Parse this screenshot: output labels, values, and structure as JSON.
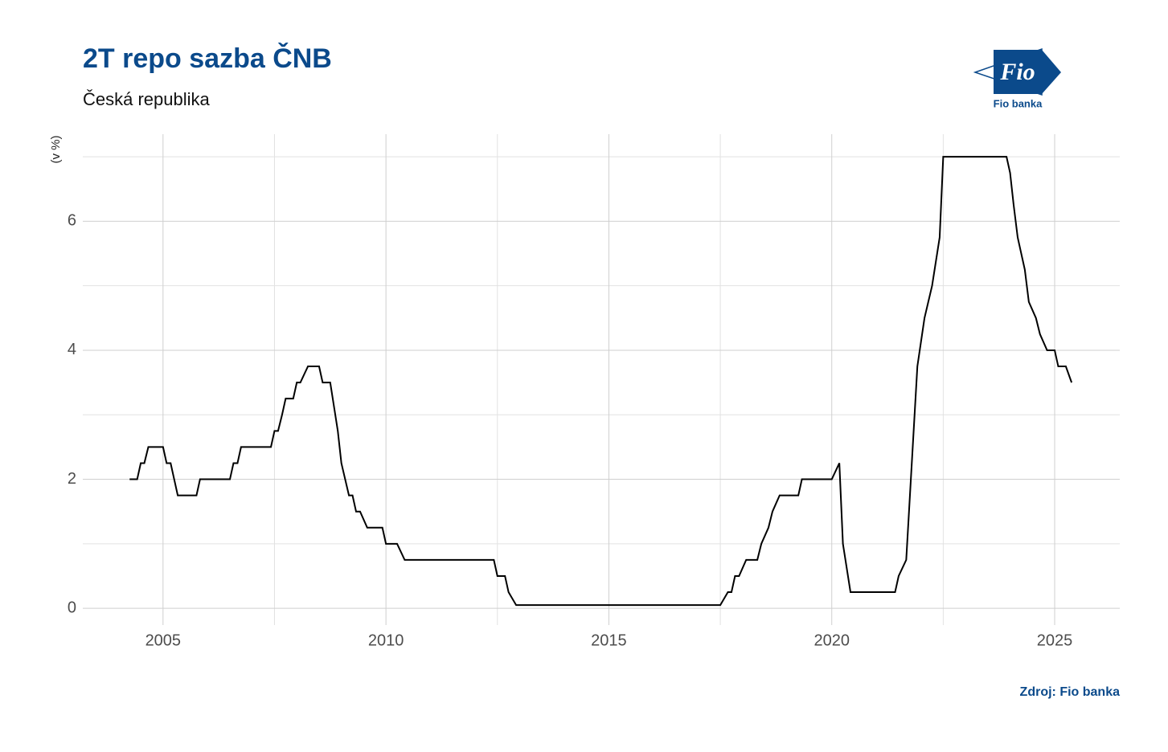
{
  "chart_data": {
    "type": "line",
    "title": "2T repo sazba ČNB",
    "subtitle": "Česká republika",
    "y_label": "(v %)",
    "caption": "Zdroj: Fio banka",
    "logo": {
      "mark": "Fio",
      "name": "Fio banka"
    },
    "xlim": [
      2003.2,
      2026.46
    ],
    "ylim": [
      -0.26,
      7.35
    ],
    "xticks": [
      2005,
      2010,
      2015,
      2020,
      2025
    ],
    "yticks": [
      0,
      2,
      4,
      6
    ],
    "grid": true,
    "minor_grid": true,
    "series": [
      {
        "name": "2T repo sazba",
        "color": "#000000",
        "x": [
          2004.25,
          2004.42,
          2004.5,
          2004.58,
          2004.67,
          2005.0,
          2005.08,
          2005.17,
          2005.25,
          2005.33,
          2005.75,
          2005.83,
          2006.5,
          2006.58,
          2006.67,
          2006.75,
          2007.42,
          2007.5,
          2007.58,
          2007.67,
          2007.75,
          2007.92,
          2008.0,
          2008.08,
          2008.25,
          2008.5,
          2008.58,
          2008.75,
          2008.92,
          2009.0,
          2009.17,
          2009.25,
          2009.33,
          2009.42,
          2009.58,
          2009.92,
          2010.0,
          2010.25,
          2010.42,
          2012.42,
          2012.5,
          2012.67,
          2012.75,
          2012.92,
          2017.5,
          2017.67,
          2017.75,
          2017.83,
          2017.92,
          2018.08,
          2018.33,
          2018.42,
          2018.58,
          2018.67,
          2018.83,
          2019.25,
          2019.33,
          2020.0,
          2020.17,
          2020.25,
          2020.42,
          2021.42,
          2021.5,
          2021.67,
          2021.92,
          2022.08,
          2022.25,
          2022.42,
          2022.5,
          2023.92,
          2024.0,
          2024.08,
          2024.17,
          2024.33,
          2024.42,
          2024.58,
          2024.67,
          2024.83,
          2025.0,
          2025.08,
          2025.25,
          2025.38
        ],
        "values": [
          2.0,
          2.0,
          2.25,
          2.25,
          2.5,
          2.5,
          2.25,
          2.25,
          2.0,
          1.75,
          1.75,
          2.0,
          2.0,
          2.25,
          2.25,
          2.5,
          2.5,
          2.75,
          2.75,
          3.0,
          3.25,
          3.25,
          3.5,
          3.5,
          3.75,
          3.75,
          3.5,
          3.5,
          2.75,
          2.25,
          1.75,
          1.75,
          1.5,
          1.5,
          1.25,
          1.25,
          1.0,
          1.0,
          0.75,
          0.75,
          0.5,
          0.5,
          0.25,
          0.05,
          0.05,
          0.25,
          0.25,
          0.5,
          0.5,
          0.75,
          0.75,
          1.0,
          1.25,
          1.5,
          1.75,
          1.75,
          2.0,
          2.0,
          2.25,
          1.0,
          0.25,
          0.25,
          0.5,
          0.75,
          3.75,
          4.5,
          5.0,
          5.75,
          7.0,
          7.0,
          6.75,
          6.25,
          5.75,
          5.25,
          4.75,
          4.5,
          4.25,
          4.0,
          4.0,
          3.75,
          3.75,
          3.5
        ]
      }
    ]
  }
}
